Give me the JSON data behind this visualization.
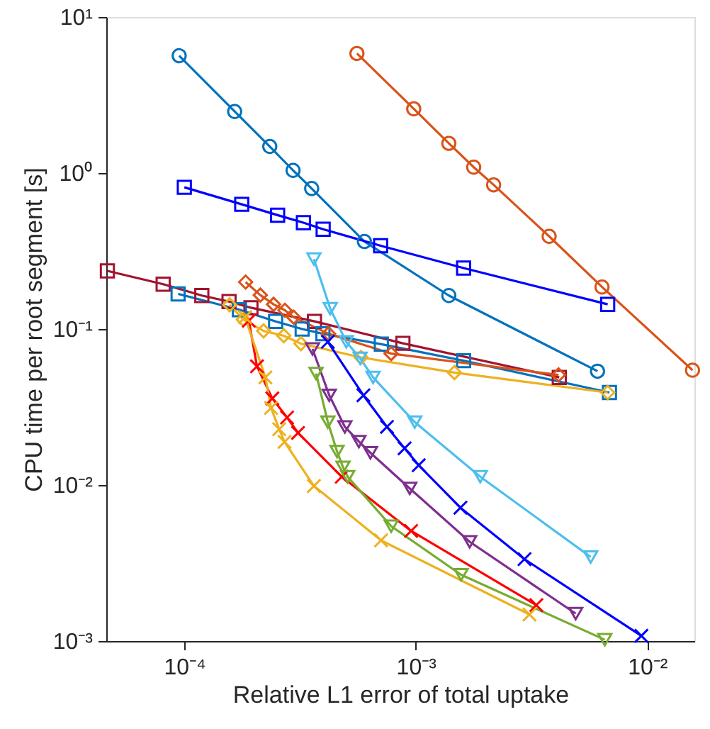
{
  "chart_data": {
    "type": "line",
    "xlabel": "Relative L1 error of total uptake",
    "ylabel": "CPU time per root segment [s]",
    "log": "xy",
    "grid": false,
    "line_style": "solid",
    "xlim": [
      4.6e-05,
      0.016
    ],
    "ylim": [
      0.001,
      10
    ],
    "xticks": [
      {
        "value": 0.0001,
        "label": "10⁻⁴"
      },
      {
        "value": 0.001,
        "label": "10⁻³"
      },
      {
        "value": 0.01,
        "label": "10⁻²"
      }
    ],
    "yticks": [
      {
        "value": 0.001,
        "label": "10⁻³"
      },
      {
        "value": 0.01,
        "label": "10⁻²"
      },
      {
        "value": 0.1,
        "label": "10⁻¹"
      },
      {
        "value": 1,
        "label": "10⁰"
      },
      {
        "value": 10,
        "label": "10¹"
      }
    ],
    "series": [
      {
        "color": "#0072bd",
        "marker": "circle",
        "x": [
          9.5e-05,
          0.000165,
          0.000234,
          0.000295,
          0.000355,
          0.0006,
          0.00139,
          0.0061
        ],
        "values": [
          5.65,
          2.48,
          1.48,
          1.04,
          0.796,
          0.364,
          0.164,
          0.0537
        ]
      },
      {
        "color": "#d95319",
        "marker": "circle",
        "x": [
          0.000557,
          0.00098,
          0.00139,
          0.00178,
          0.00217,
          0.00377,
          0.00638,
          0.0157
        ],
        "values": [
          5.84,
          2.58,
          1.55,
          1.09,
          0.84,
          0.393,
          0.186,
          0.0545
        ]
      },
      {
        "color": "#0000ff",
        "marker": "square",
        "x": [
          0.0001,
          0.000177,
          0.000253,
          0.000327,
          0.000398,
          0.000705,
          0.00161,
          0.00675
        ],
        "values": [
          0.81,
          0.63,
          0.537,
          0.481,
          0.436,
          0.342,
          0.246,
          0.144
        ]
      },
      {
        "color": "#a2142f",
        "marker": "square",
        "x": [
          4.65e-05,
          8.1e-05,
          0.000119,
          0.000156,
          0.000194,
          0.000365,
          0.00088,
          0.00417
        ],
        "values": [
          0.236,
          0.194,
          0.164,
          0.15,
          0.137,
          0.112,
          0.081,
          0.049
        ]
      },
      {
        "color": "#0072bd",
        "marker": "square",
        "x": [
          9.4e-05,
          0.000173,
          0.000248,
          0.000323,
          0.000397,
          0.00071,
          0.00161,
          0.00687
        ],
        "values": [
          0.168,
          0.133,
          0.112,
          0.1,
          0.0933,
          0.08,
          0.0627,
          0.0392
        ]
      },
      {
        "color": "#d95319",
        "marker": "diamond",
        "x": [
          0.000184,
          0.000213,
          0.000243,
          0.000272,
          0.000297,
          0.00042,
          0.000783,
          0.00414
        ],
        "values": [
          0.2,
          0.165,
          0.144,
          0.132,
          0.119,
          0.0933,
          0.0696,
          0.0508
        ]
      },
      {
        "color": "#edb120",
        "marker": "diamond",
        "x": [
          0.000157,
          0.00018,
          0.00022,
          0.000269,
          0.000319,
          0.00058,
          0.00147,
          0.00675
        ],
        "values": [
          0.143,
          0.115,
          0.0973,
          0.0906,
          0.0806,
          0.0658,
          0.0526,
          0.0392
        ]
      },
      {
        "color": "#ff0000",
        "marker": "cross",
        "x": [
          0.00019,
          0.000206,
          0.00024,
          0.000278,
          0.00031,
          0.000479,
          0.000955,
          0.00332
        ],
        "values": [
          0.113,
          0.0577,
          0.0359,
          0.0271,
          0.0216,
          0.0113,
          0.00508,
          0.0017
        ]
      },
      {
        "color": "#edb120",
        "marker": "cross",
        "x": [
          0.000183,
          0.000224,
          0.000237,
          0.000257,
          0.000271,
          0.000363,
          0.000708,
          0.0031
        ],
        "values": [
          0.119,
          0.049,
          0.0312,
          0.0228,
          0.0189,
          0.00986,
          0.00442,
          0.00148
        ]
      },
      {
        "color": "#4dbeee",
        "marker": "triangle",
        "x": [
          0.000363,
          0.000427,
          0.000501,
          0.000575,
          0.000654,
          0.00099,
          0.0019,
          0.0057
        ],
        "values": [
          0.281,
          0.135,
          0.0828,
          0.0649,
          0.049,
          0.0253,
          0.0113,
          0.00346
        ]
      },
      {
        "color": "#0000ff",
        "marker": "cross",
        "x": [
          0.000417,
          0.000594,
          0.000751,
          0.000895,
          0.00103,
          0.00156,
          0.00295,
          0.00944
        ],
        "values": [
          0.0828,
          0.0376,
          0.0236,
          0.0172,
          0.0134,
          0.00716,
          0.00335,
          0.00108
        ]
      },
      {
        "color": "#7e2f8e",
        "marker": "triangle",
        "x": [
          0.000358,
          0.000423,
          0.000494,
          0.000568,
          0.000637,
          0.000942,
          0.00171,
          0.00491
        ],
        "values": [
          0.0746,
          0.0376,
          0.0236,
          0.019,
          0.0161,
          0.00952,
          0.00433,
          0.0015
        ]
      },
      {
        "color": "#77ac30",
        "marker": "triangle",
        "x": [
          0.000371,
          0.000417,
          0.000457,
          0.000485,
          0.000508,
          0.000783,
          0.00157,
          0.00656
        ],
        "values": [
          0.0519,
          0.0253,
          0.0164,
          0.013,
          0.0113,
          0.00545,
          0.00266,
          0.00102
        ]
      }
    ]
  }
}
